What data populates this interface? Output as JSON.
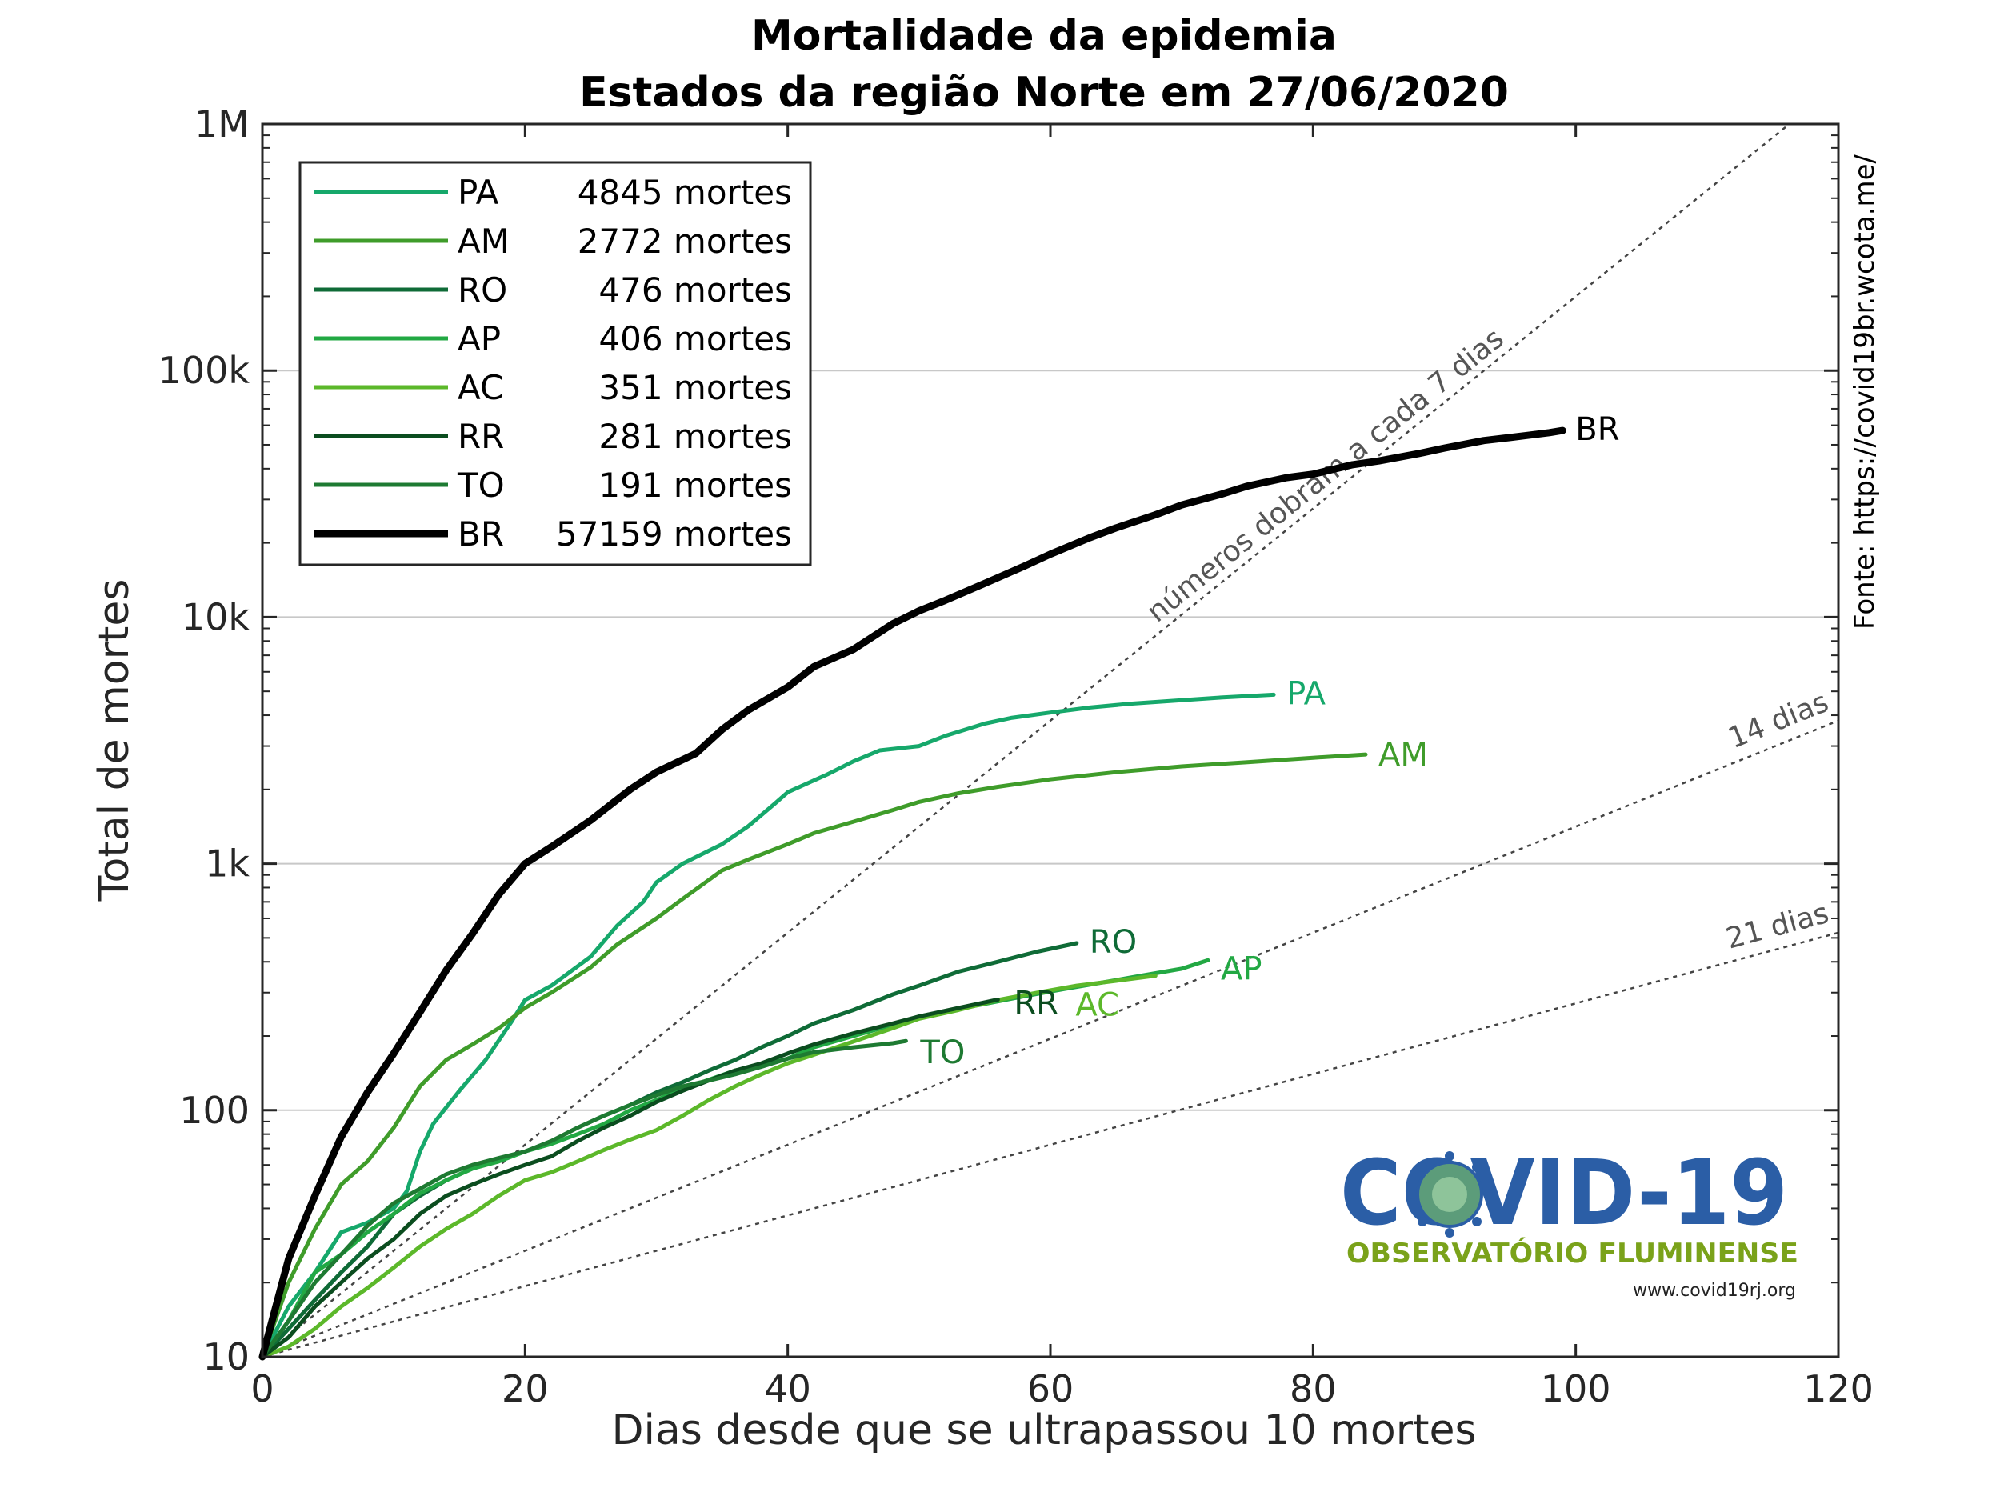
{
  "chart_data": {
    "type": "line",
    "title": "Mortalidade da epidemia",
    "subtitle": "Estados da região Norte em 27/06/2020",
    "xlabel": "Dias desde que se ultrapassou 10 mortes",
    "ylabel": "Total de mortes",
    "xlim": [
      0,
      120
    ],
    "ylim": [
      10,
      1000000
    ],
    "yscale": "log",
    "xticks": [
      0,
      20,
      40,
      60,
      80,
      100,
      120
    ],
    "xtick_labels": [
      "0",
      "20",
      "40",
      "60",
      "80",
      "100",
      "120"
    ],
    "yticks": [
      10,
      100,
      1000,
      10000,
      100000,
      1000000
    ],
    "ytick_labels": [
      "10",
      "100",
      "1k",
      "10k",
      "100k",
      "1M"
    ],
    "grid": "horizontal",
    "legend_position": "top-left",
    "source_text": "Fonte: https://covid19br.wcota.me/",
    "reference_lines": [
      {
        "label": "números dobram a cada 7 dias",
        "doubling_days": 7
      },
      {
        "label": "14 dias",
        "doubling_days": 14
      },
      {
        "label": "21 dias",
        "doubling_days": 21
      }
    ],
    "series": [
      {
        "name": "PA",
        "legend": "4845 mortes",
        "color": "#16a86b",
        "width": 5,
        "x": [
          0,
          2,
          4,
          6,
          8,
          10,
          11,
          12,
          13,
          15,
          17,
          19,
          20,
          22,
          25,
          27,
          29,
          30,
          32,
          35,
          37,
          39,
          40,
          43,
          45,
          47,
          50,
          52,
          55,
          57,
          60,
          63,
          66,
          70,
          73,
          77
        ],
        "y": [
          10,
          16,
          22,
          32,
          35,
          40,
          47,
          68,
          88,
          120,
          160,
          230,
          280,
          320,
          420,
          560,
          700,
          840,
          1000,
          1200,
          1420,
          1750,
          1950,
          2300,
          2600,
          2880,
          3000,
          3300,
          3700,
          3900,
          4100,
          4300,
          4450,
          4600,
          4720,
          4845
        ]
      },
      {
        "name": "AM",
        "legend": "2772 mortes",
        "color": "#3f9c2a",
        "width": 5,
        "x": [
          0,
          2,
          4,
          6,
          8,
          10,
          12,
          14,
          16,
          18,
          20,
          22,
          25,
          27,
          30,
          32,
          35,
          37,
          40,
          42,
          45,
          48,
          50,
          53,
          56,
          60,
          65,
          70,
          75,
          80,
          84
        ],
        "y": [
          10,
          20,
          33,
          50,
          62,
          85,
          125,
          160,
          185,
          215,
          260,
          300,
          380,
          470,
          600,
          720,
          940,
          1040,
          1200,
          1330,
          1480,
          1650,
          1780,
          1930,
          2050,
          2200,
          2350,
          2480,
          2580,
          2690,
          2772
        ]
      },
      {
        "name": "RO",
        "legend": "476 mortes",
        "color": "#0f6b37",
        "width": 5,
        "x": [
          0,
          2,
          4,
          6,
          8,
          10,
          12,
          14,
          16,
          18,
          20,
          22,
          24,
          26,
          28,
          30,
          32,
          34,
          36,
          38,
          40,
          42,
          45,
          48,
          50,
          53,
          56,
          59,
          62
        ],
        "y": [
          10,
          13,
          17,
          22,
          28,
          38,
          45,
          52,
          58,
          63,
          68,
          75,
          85,
          95,
          105,
          118,
          130,
          145,
          160,
          180,
          200,
          225,
          255,
          295,
          320,
          365,
          400,
          440,
          476
        ]
      },
      {
        "name": "AP",
        "legend": "406 mortes",
        "color": "#22a843",
        "width": 5,
        "x": [
          0,
          2,
          4,
          6,
          8,
          10,
          12,
          14,
          16,
          18,
          20,
          22,
          24,
          26,
          28,
          30,
          32,
          34,
          36,
          38,
          40,
          42,
          45,
          48,
          50,
          52,
          55,
          58,
          61,
          64,
          67,
          70,
          72
        ],
        "y": [
          10,
          14,
          22,
          26,
          32,
          38,
          46,
          52,
          58,
          62,
          68,
          73,
          80,
          88,
          100,
          110,
          122,
          133,
          145,
          152,
          162,
          180,
          200,
          222,
          240,
          252,
          270,
          290,
          310,
          330,
          352,
          375,
          406
        ]
      },
      {
        "name": "AC",
        "legend": "351 mortes",
        "color": "#5cb82a",
        "width": 5,
        "x": [
          0,
          2,
          4,
          6,
          8,
          10,
          12,
          14,
          16,
          18,
          20,
          22,
          24,
          26,
          28,
          30,
          32,
          34,
          36,
          38,
          40,
          42,
          45,
          48,
          50,
          53,
          56,
          59,
          62,
          65,
          68
        ],
        "y": [
          10,
          11,
          13,
          16,
          19,
          23,
          28,
          33,
          38,
          45,
          52,
          56,
          62,
          69,
          76,
          83,
          95,
          110,
          125,
          140,
          155,
          168,
          190,
          215,
          235,
          255,
          280,
          300,
          320,
          335,
          351
        ]
      },
      {
        "name": "RR",
        "legend": "281 mortes",
        "color": "#0b4d1f",
        "width": 5,
        "x": [
          0,
          2,
          4,
          6,
          8,
          10,
          12,
          14,
          16,
          18,
          20,
          22,
          24,
          26,
          28,
          30,
          32,
          34,
          36,
          38,
          40,
          42,
          45,
          48,
          50,
          53,
          56
        ],
        "y": [
          10,
          12,
          16,
          20,
          25,
          30,
          38,
          45,
          50,
          55,
          60,
          65,
          75,
          85,
          95,
          108,
          120,
          132,
          145,
          155,
          170,
          185,
          205,
          225,
          240,
          260,
          281
        ]
      },
      {
        "name": "TO",
        "legend": "191 mortes",
        "color": "#1e7a32",
        "width": 5,
        "x": [
          0,
          2,
          4,
          6,
          8,
          10,
          12,
          14,
          16,
          18,
          20,
          22,
          24,
          26,
          28,
          30,
          32,
          34,
          36,
          38,
          40,
          42,
          45,
          48,
          49
        ],
        "y": [
          10,
          14,
          20,
          26,
          34,
          42,
          48,
          55,
          60,
          64,
          68,
          75,
          85,
          95,
          105,
          115,
          125,
          132,
          140,
          150,
          162,
          172,
          180,
          187,
          191
        ]
      },
      {
        "name": "BR",
        "legend": "57159 mortes",
        "color": "#000000",
        "width": 9,
        "x": [
          0,
          2,
          4,
          6,
          8,
          10,
          12,
          14,
          16,
          18,
          20,
          22,
          25,
          28,
          30,
          33,
          35,
          37,
          40,
          42,
          45,
          48,
          50,
          52,
          55,
          58,
          60,
          63,
          65,
          68,
          70,
          73,
          75,
          78,
          80,
          83,
          85,
          88,
          90,
          93,
          95,
          98,
          99
        ],
        "y": [
          10,
          25,
          45,
          78,
          118,
          170,
          250,
          370,
          520,
          750,
          1000,
          1170,
          1500,
          2000,
          2350,
          2800,
          3500,
          4200,
          5200,
          6300,
          7400,
          9400,
          10600,
          11700,
          13700,
          16100,
          18000,
          21000,
          23000,
          26000,
          28500,
          31500,
          34000,
          36800,
          38000,
          41500,
          43000,
          46000,
          48500,
          52000,
          53500,
          56000,
          57159
        ]
      }
    ]
  },
  "logo": {
    "line1": "COVID-19",
    "line2": "OBSERVATÓRIO FLUMINENSE",
    "line3": "www.covid19rj.org"
  }
}
